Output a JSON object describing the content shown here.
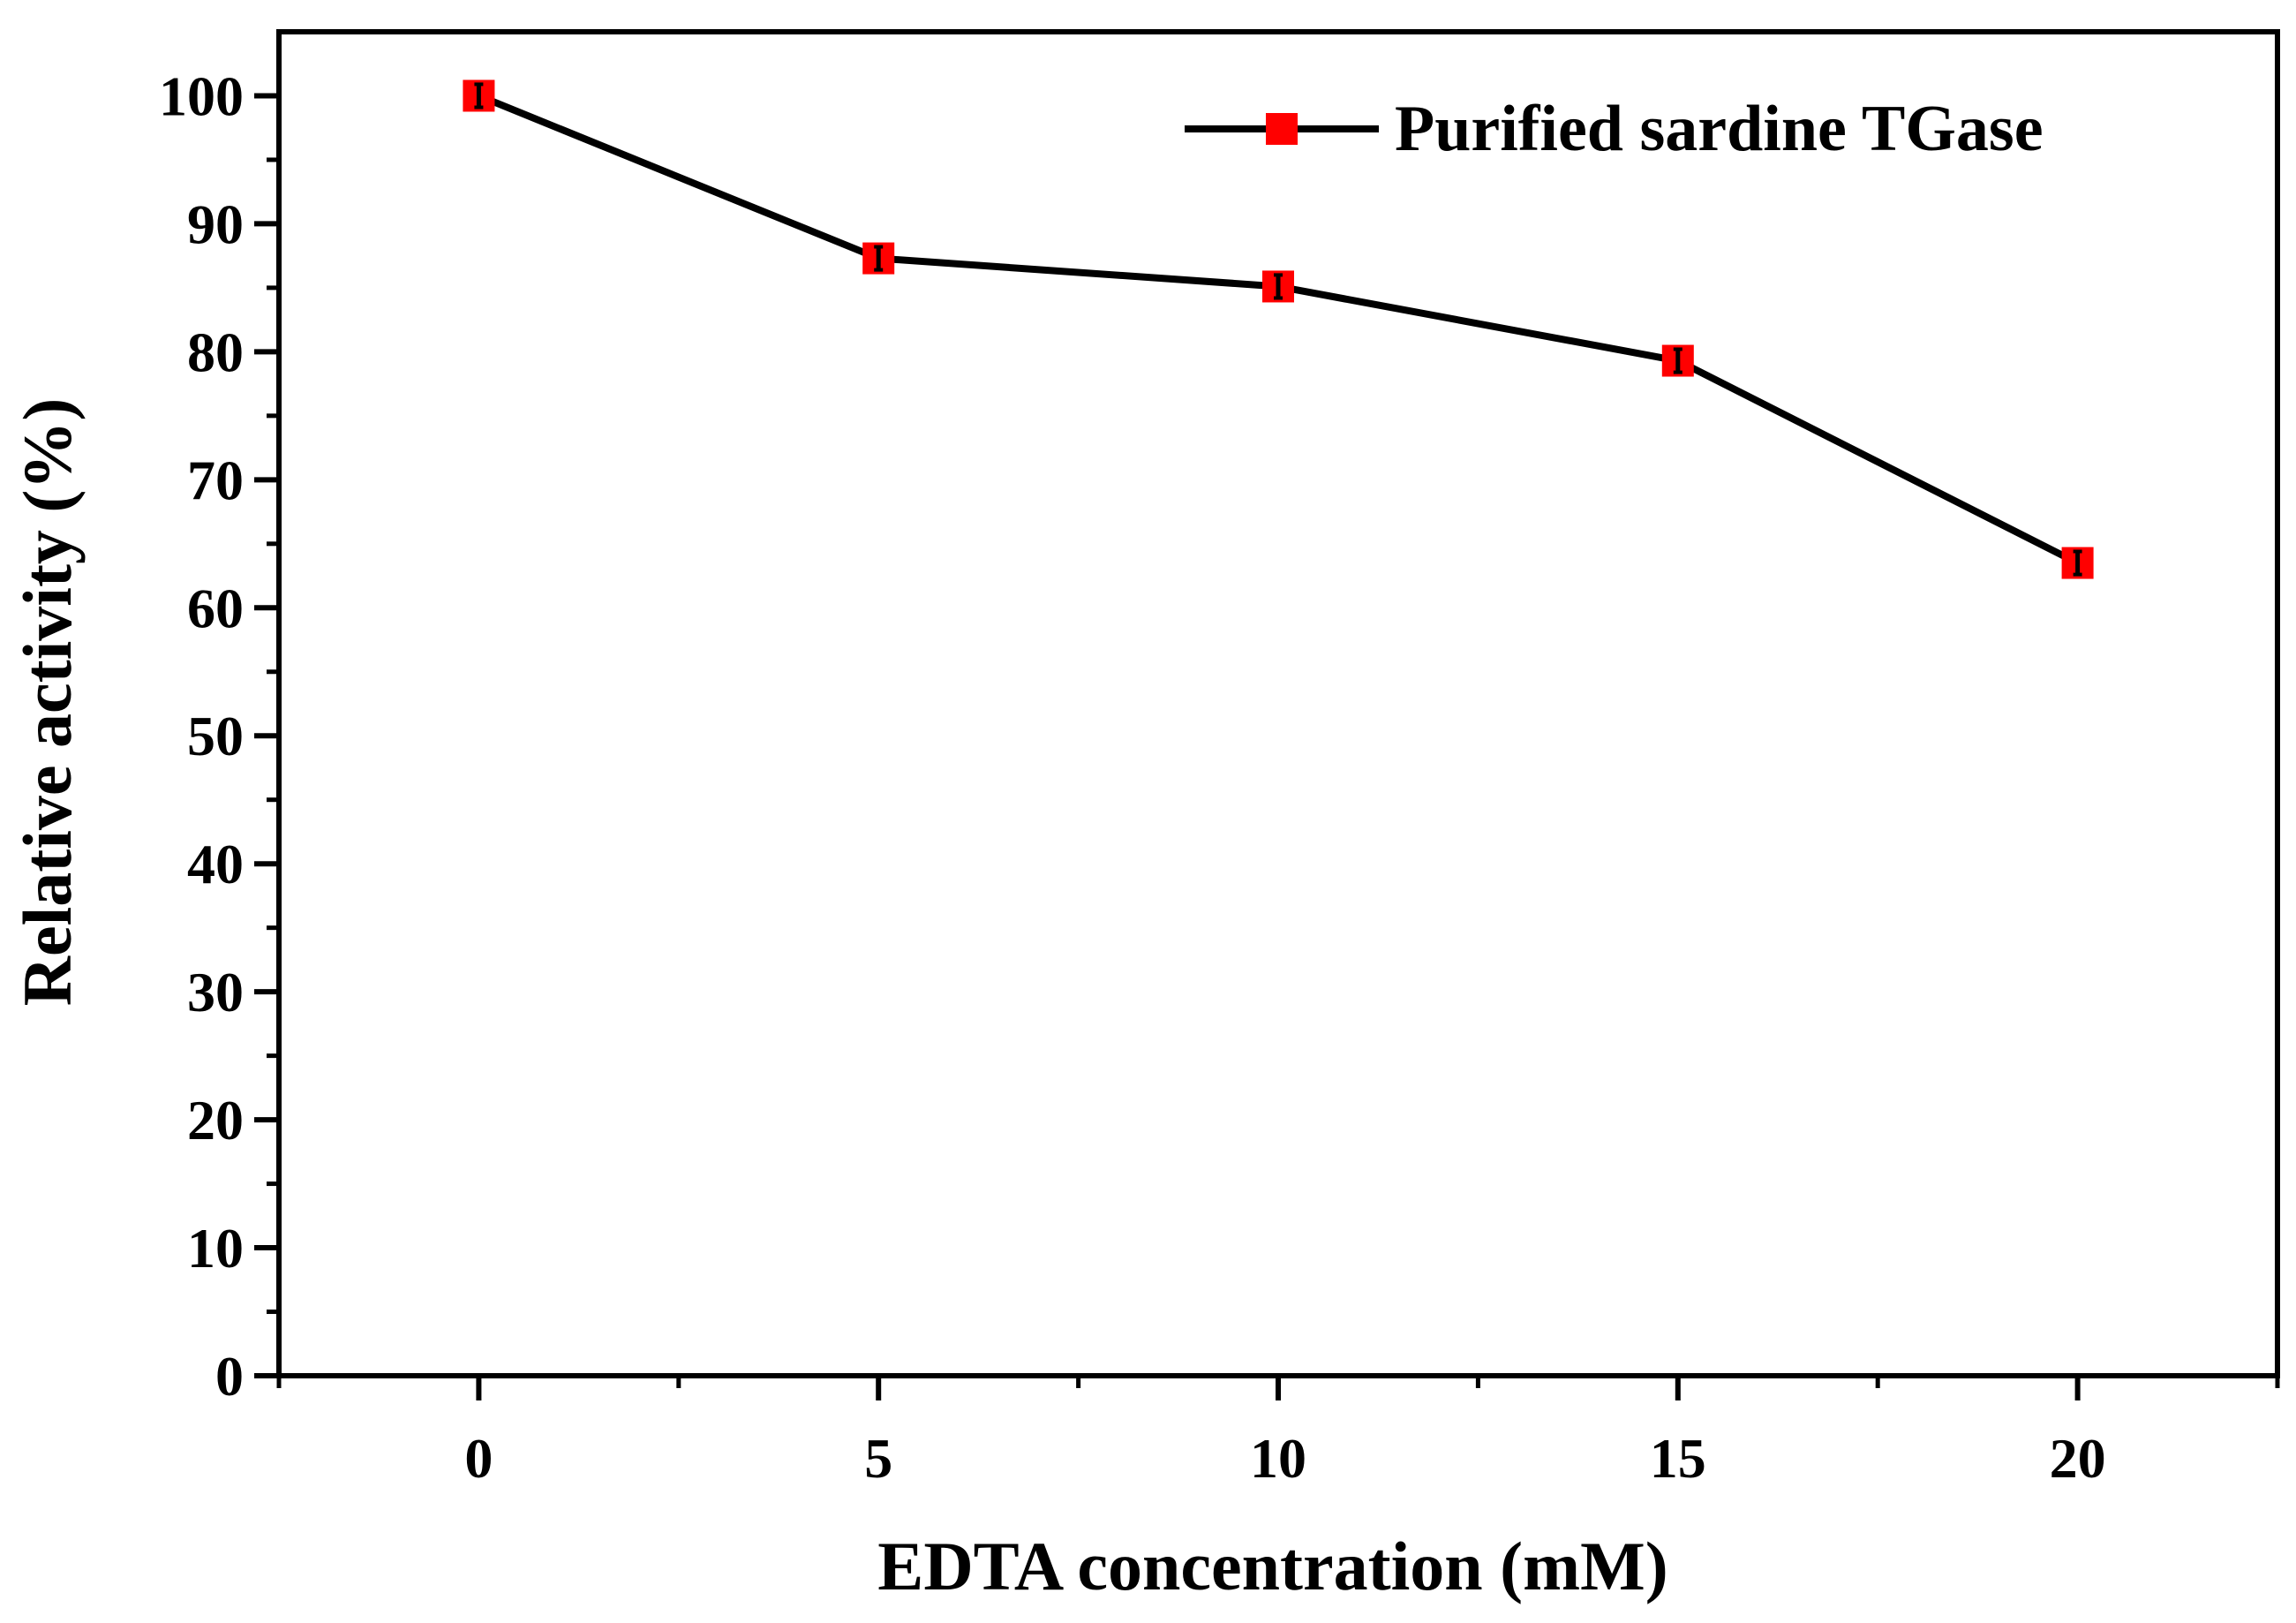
{
  "chart_data": {
    "type": "line",
    "title": "",
    "xlabel": "EDTA concentration (mM)",
    "ylabel": "Relative activity (%)",
    "x": [
      0,
      5,
      10,
      15,
      20
    ],
    "xlim": [
      -2.5,
      22.5
    ],
    "ylim": [
      0,
      105
    ],
    "xticks": [
      0,
      5,
      10,
      15,
      20
    ],
    "xtick_labels": [
      "0",
      "5",
      "10",
      "15",
      "20"
    ],
    "yticks": [
      0,
      10,
      20,
      30,
      40,
      50,
      60,
      70,
      80,
      90,
      100
    ],
    "ytick_labels": [
      "0",
      "10",
      "20",
      "30",
      "40",
      "50",
      "60",
      "70",
      "80",
      "90",
      "100"
    ],
    "grid": false,
    "legend_position": "top-right",
    "series": [
      {
        "name": "Purified sardine TGase",
        "values": [
          100,
          87.3,
          85.1,
          79.3,
          63.5
        ],
        "errors": [
          0.9,
          0.9,
          0.9,
          0.9,
          0.9
        ],
        "line_color": "#000000",
        "marker": "square",
        "marker_color": "#ff0000"
      }
    ]
  }
}
